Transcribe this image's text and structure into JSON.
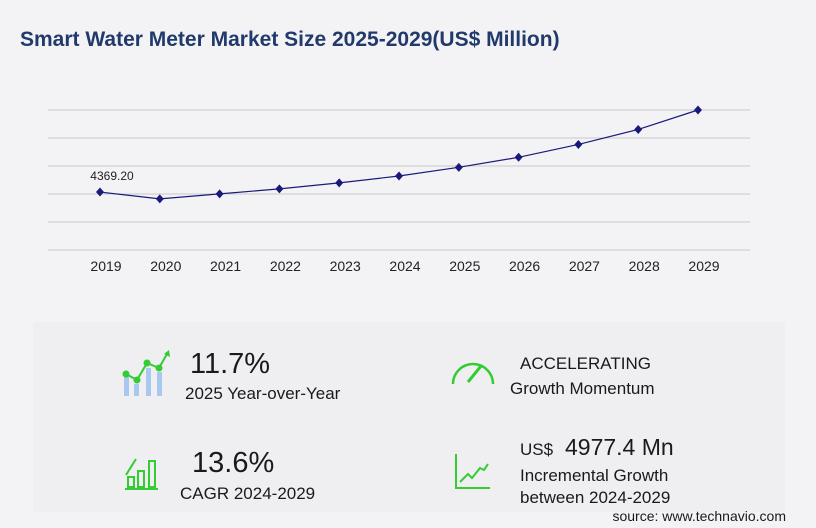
{
  "title": "Smart Water Meter Market Size 2025-2029(US$ Million)",
  "chart_data": {
    "type": "line",
    "title": "Smart Water Meter Market Size 2025-2029(US$ Million)",
    "categories": [
      "2019",
      "2020",
      "2021",
      "2022",
      "2023",
      "2024",
      "2025",
      "2026",
      "2027",
      "2028",
      "2029"
    ],
    "values": [
      4369.2,
      3855,
      4230,
      4610,
      5060,
      5580,
      6233,
      6990,
      7960,
      9090,
      10557
    ],
    "data_labels": {
      "0": "4369.20"
    },
    "ylim": [
      0,
      10557
    ],
    "grid": true,
    "line_color": "#1a1a7a"
  },
  "stats": {
    "yoy_value": "11.7%",
    "yoy_label": "2025 Year-over-Year",
    "momentum_value": "ACCELERATING",
    "momentum_label": "Growth Momentum",
    "cagr_value": "13.6%",
    "cagr_label": "CAGR 2024-2029",
    "incr_currency": "US$",
    "incr_value": "4977.4 Mn",
    "incr_label1": "Incremental Growth",
    "incr_label2": "between 2024-2029"
  },
  "source": "source: www.technavio.com",
  "colors": {
    "accent": "#33cc33",
    "title": "#213a6b",
    "bars": "#a9c8f0"
  }
}
